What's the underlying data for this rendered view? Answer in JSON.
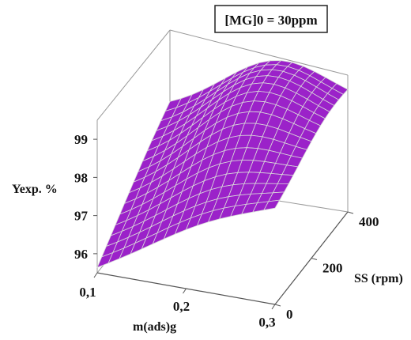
{
  "chart_data": {
    "type": "surface",
    "legend_text": "[MG]0 = 30ppm",
    "xlabel": "m(ads)g",
    "ylabel": "SS (rpm)",
    "zlabel": "Yexp. %",
    "x_ticks": [
      "0,1",
      "0,2",
      "0,3"
    ],
    "y_ticks": [
      "0",
      "200",
      "400"
    ],
    "z_ticks": [
      "96",
      "97",
      "98",
      "99"
    ],
    "xlim": [
      0.1,
      0.3
    ],
    "ylim": [
      0,
      400
    ],
    "zlim": [
      95.5,
      99.5
    ],
    "surface_color": "#9b22c9",
    "mesh_color": "#d9d9d9",
    "surface_model": {
      "description_in_text": false,
      "grid_x_steps": 16,
      "grid_y_steps": 16,
      "z_at_corners": {
        "x0.1_y0": 95.6,
        "x0.3_y0": 97.9,
        "x0.1_y400": 97.4,
        "x0.3_y400": 98.2
      },
      "z_max": 99.3,
      "z_max_at": [
        0.22,
        300
      ]
    }
  }
}
